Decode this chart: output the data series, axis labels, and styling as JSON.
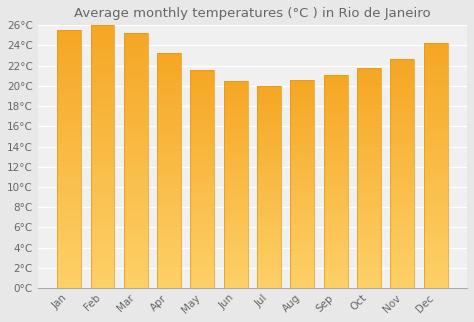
{
  "title": "Average monthly temperatures (°C ) in Rio de Janeiro",
  "months": [
    "Jan",
    "Feb",
    "Mar",
    "Apr",
    "May",
    "Jun",
    "Jul",
    "Aug",
    "Sep",
    "Oct",
    "Nov",
    "Dec"
  ],
  "values": [
    25.5,
    26.0,
    25.2,
    23.3,
    21.6,
    20.5,
    20.0,
    20.6,
    21.1,
    21.8,
    22.7,
    24.2
  ],
  "bar_color_top": "#F5A623",
  "bar_color_bottom": "#FDD068",
  "bar_edge_color": "#E8960A",
  "background_color": "#e8e8e8",
  "plot_bg_color": "#f0f0f0",
  "grid_color": "#ffffff",
  "text_color": "#666666",
  "ylim": [
    0,
    26
  ],
  "ytick_step": 2,
  "title_fontsize": 9.5,
  "tick_fontsize": 7.5
}
